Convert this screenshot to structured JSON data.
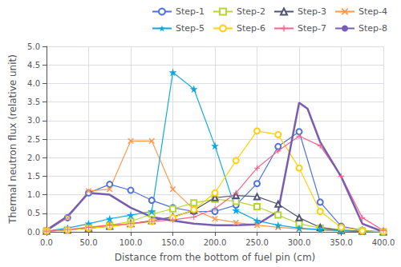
{
  "chart_data": {
    "type": "line",
    "xlabel": "Distance from the bottom of fuel pin (cm)",
    "ylabel": "Thermal neutron flux (relative unit)",
    "xlim": [
      0.0,
      400.0
    ],
    "ylim": [
      0.0,
      5.0
    ],
    "xticks": [
      {
        "value": 0,
        "label": "0.0"
      },
      {
        "value": 50,
        "label": "50.0"
      },
      {
        "value": 100,
        "label": "100.0"
      },
      {
        "value": 150,
        "label": "150.0"
      },
      {
        "value": 200,
        "label": "200.0"
      },
      {
        "value": 250,
        "label": "250.0"
      },
      {
        "value": 300,
        "label": "300.0"
      },
      {
        "value": 350,
        "label": "350.0"
      },
      {
        "value": 400,
        "label": "400.0"
      }
    ],
    "yticks": [
      {
        "value": 0,
        "label": "0.0"
      },
      0.5,
      {
        "value": 1,
        "label": "1.0"
      },
      1.5,
      {
        "value": 2,
        "label": "2.0"
      },
      2.5,
      {
        "value": 3,
        "label": "3.0"
      },
      3.5,
      {
        "value": 4,
        "label": "4.0"
      },
      4.5,
      {
        "value": 5,
        "label": "5.0"
      }
    ],
    "grid": true,
    "legend": "upper right",
    "series": [
      {
        "name": "Step-1",
        "marker": "circle",
        "x": [
          0,
          25,
          50,
          75,
          100,
          125,
          150,
          175,
          200,
          225,
          250,
          275,
          300,
          325,
          350,
          375,
          400
        ],
        "values": [
          0.02,
          0.38,
          1.05,
          1.28,
          1.12,
          0.85,
          0.65,
          0.55,
          0.55,
          0.72,
          1.3,
          2.3,
          2.7,
          0.8,
          0.15,
          0.04,
          0.0
        ]
      },
      {
        "name": "Step-2",
        "marker": "square",
        "x": [
          0,
          25,
          50,
          75,
          100,
          125,
          150,
          175,
          200,
          225,
          250,
          275,
          300,
          325,
          350,
          375,
          400
        ],
        "values": [
          0.02,
          0.05,
          0.12,
          0.18,
          0.28,
          0.48,
          0.62,
          0.78,
          0.88,
          0.82,
          0.68,
          0.45,
          0.22,
          0.1,
          0.05,
          0.02,
          0.0
        ]
      },
      {
        "name": "Step-3",
        "marker": "triangle",
        "x": [
          0,
          25,
          50,
          75,
          100,
          125,
          150,
          175,
          200,
          225,
          250,
          275,
          300,
          325,
          350,
          375,
          400
        ],
        "values": [
          0.02,
          0.05,
          0.1,
          0.15,
          0.22,
          0.3,
          0.4,
          0.58,
          0.92,
          0.98,
          0.95,
          0.75,
          0.38,
          0.12,
          0.04,
          0.02,
          0.0
        ]
      },
      {
        "name": "Step-4",
        "marker": "x",
        "x": [
          0,
          25,
          50,
          75,
          100,
          125,
          150,
          175,
          200,
          225,
          250,
          275,
          300,
          325,
          350,
          375,
          400
        ],
        "values": [
          0.05,
          0.38,
          1.1,
          1.15,
          2.45,
          2.45,
          1.15,
          0.6,
          0.35,
          0.25,
          0.18,
          0.12,
          0.08,
          0.05,
          0.03,
          0.01,
          0.0
        ]
      },
      {
        "name": "Step-5",
        "marker": "star",
        "x": [
          0,
          25,
          50,
          75,
          100,
          125,
          150,
          175,
          200,
          225,
          250,
          275,
          300,
          325,
          350,
          375,
          400
        ],
        "values": [
          0.02,
          0.1,
          0.22,
          0.35,
          0.45,
          0.55,
          4.3,
          3.85,
          2.32,
          0.58,
          0.3,
          0.18,
          0.1,
          0.06,
          0.03,
          0.01,
          0.0
        ]
      },
      {
        "name": "Step-6",
        "marker": "circle",
        "x": [
          0,
          25,
          50,
          75,
          100,
          125,
          150,
          175,
          200,
          225,
          250,
          275,
          300,
          325,
          350,
          375,
          400
        ],
        "values": [
          0.02,
          0.05,
          0.1,
          0.15,
          0.2,
          0.28,
          0.38,
          0.6,
          1.05,
          1.92,
          2.72,
          2.62,
          1.72,
          0.55,
          0.12,
          0.03,
          0.0
        ]
      },
      {
        "name": "Step-7",
        "marker": "plus",
        "x": [
          0,
          25,
          50,
          75,
          100,
          125,
          150,
          175,
          200,
          225,
          250,
          275,
          300,
          325,
          350,
          375,
          400
        ],
        "values": [
          0.02,
          0.06,
          0.12,
          0.18,
          0.22,
          0.28,
          0.32,
          0.4,
          0.62,
          1.05,
          1.72,
          2.18,
          2.58,
          2.32,
          1.5,
          0.38,
          0.04
        ]
      },
      {
        "name": "Step-8",
        "marker": "none",
        "x": [
          0,
          25,
          50,
          75,
          100,
          125,
          150,
          175,
          200,
          225,
          250,
          275,
          300,
          310,
          325,
          350,
          375,
          400
        ],
        "values": [
          0.05,
          0.42,
          1.05,
          1.0,
          0.65,
          0.4,
          0.3,
          0.22,
          0.18,
          0.18,
          0.2,
          0.55,
          3.48,
          3.32,
          2.42,
          1.48,
          0.22,
          0.0
        ]
      }
    ]
  }
}
